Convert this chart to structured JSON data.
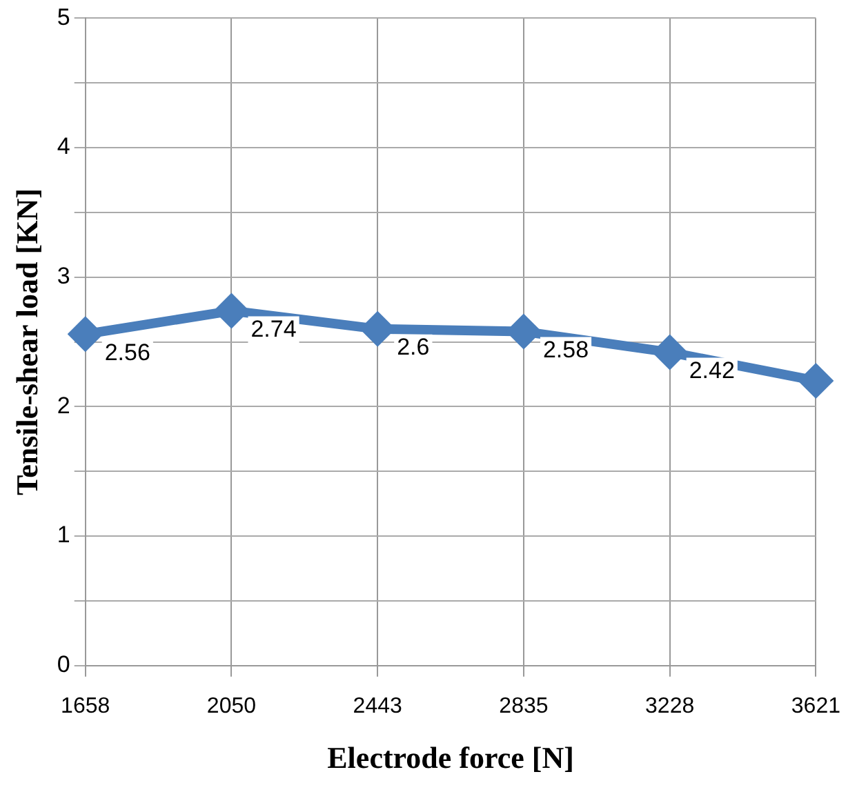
{
  "chart_data": {
    "type": "line",
    "xlabel": "Electrode force [N]",
    "ylabel": "Tensile-shear load [KN]",
    "categories": [
      "1658",
      "2050",
      "2443",
      "2835",
      "3228",
      "3621"
    ],
    "series": [
      {
        "color": "#4a7ebb",
        "values": [
          2.56,
          2.74,
          2.6,
          2.58,
          2.42,
          2.2
        ],
        "value_labels": [
          "2.56",
          "2.74",
          "2.6",
          "2.58",
          "2.42",
          null
        ]
      }
    ],
    "ylim": [
      0,
      5
    ],
    "yticks": [
      0,
      {
        "value": 0.5,
        "label": null
      },
      1,
      {
        "value": 1.5,
        "label": null
      },
      2,
      {
        "value": 2.5,
        "label": null
      },
      3,
      {
        "value": 3.5,
        "label": null
      },
      4,
      {
        "value": 4.5,
        "label": null
      },
      5
    ],
    "grid": true,
    "legend": false,
    "marker": "diamond",
    "line_style": "solid"
  }
}
